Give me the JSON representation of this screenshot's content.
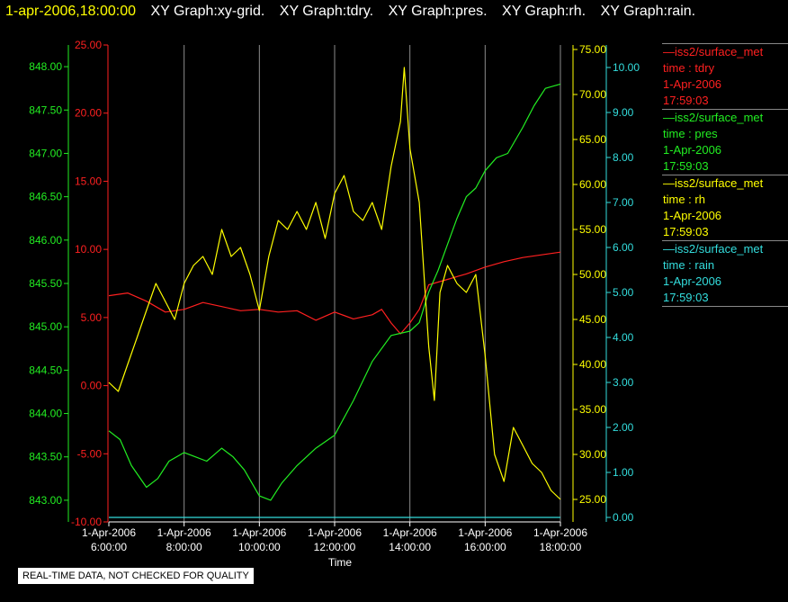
{
  "header": {
    "timestamp": "1-apr-2006,18:00:00",
    "graphs": [
      "XY Graph:xy-grid.",
      "XY Graph:tdry.",
      "XY Graph:pres.",
      "XY Graph:rh.",
      "XY Graph:rain."
    ]
  },
  "footer": {
    "note": "REAL-TIME DATA, NOT CHECKED FOR QUALITY"
  },
  "legend": [
    {
      "name": "—iss2/surface_met",
      "var": "time : tdry",
      "date": "1-Apr-2006",
      "time": "17:59:03",
      "color": "#ff2020"
    },
    {
      "name": "—iss2/surface_met",
      "var": "time : pres",
      "date": "1-Apr-2006",
      "time": "17:59:03",
      "color": "#22ee22"
    },
    {
      "name": "—iss2/surface_met",
      "var": "time : rh",
      "date": "1-Apr-2006",
      "time": "17:59:03",
      "color": "#ffff00"
    },
    {
      "name": "—iss2/surface_met",
      "var": "time : rain",
      "date": "1-Apr-2006",
      "time": "17:59:03",
      "color": "#33dddd"
    }
  ],
  "chart_data": {
    "type": "line",
    "xlabel": "Time",
    "x_range_hours": [
      6,
      18
    ],
    "x_ticks": [
      {
        "hour": 6,
        "date": "1-Apr-2006",
        "time": "6:00:00"
      },
      {
        "hour": 8,
        "date": "1-Apr-2006",
        "time": "8:00:00"
      },
      {
        "hour": 10,
        "date": "1-Apr-2006",
        "time": "10:00:00"
      },
      {
        "hour": 12,
        "date": "1-Apr-2006",
        "time": "12:00:00"
      },
      {
        "hour": 14,
        "date": "1-Apr-2006",
        "time": "14:00:00"
      },
      {
        "hour": 16,
        "date": "1-Apr-2006",
        "time": "16:00:00"
      },
      {
        "hour": 18,
        "date": "1-Apr-2006",
        "time": "18:00:00"
      }
    ],
    "grid": "vertical",
    "axes": {
      "pres": {
        "range": [
          842.75,
          848.25
        ],
        "ticks": [
          "843.00",
          "843.50",
          "844.00",
          "844.50",
          "845.00",
          "845.50",
          "846.00",
          "846.50",
          "847.00",
          "847.50",
          "848.00"
        ],
        "color": "#22ee22"
      },
      "tdry": {
        "range": [
          -10,
          25
        ],
        "ticks": [
          "-10.00",
          "-5.00",
          "0.00",
          "5.00",
          "10.00",
          "15.00",
          "20.00",
          "25.00"
        ],
        "color": "#ff2020"
      },
      "rh": {
        "range": [
          22.5,
          75.5
        ],
        "ticks": [
          "25.00",
          "30.00",
          "35.00",
          "40.00",
          "45.00",
          "50.00",
          "55.00",
          "60.00",
          "65.00",
          "70.00",
          "75.00"
        ],
        "color": "#ffff00"
      },
      "rain": {
        "range": [
          -0.1,
          10.5
        ],
        "ticks": [
          "0.00",
          "1.00",
          "2.00",
          "3.00",
          "4.00",
          "5.00",
          "6.00",
          "7.00",
          "8.00",
          "9.00",
          "10.00"
        ],
        "color": "#33dddd"
      }
    },
    "series": [
      {
        "name": "tdry",
        "color": "#ff2020",
        "x": [
          6.0,
          6.5,
          7.0,
          7.5,
          8.0,
          8.5,
          9.0,
          9.5,
          10.0,
          10.5,
          11.0,
          11.5,
          12.0,
          12.5,
          13.0,
          13.25,
          13.5,
          13.75,
          14.0,
          14.25,
          14.5,
          14.75,
          15.0,
          15.5,
          16.0,
          16.5,
          17.0,
          17.5,
          18.0
        ],
        "y": [
          6.6,
          6.8,
          6.2,
          5.4,
          5.6,
          6.1,
          5.8,
          5.5,
          5.6,
          5.4,
          5.5,
          4.8,
          5.4,
          4.9,
          5.2,
          5.6,
          4.6,
          3.8,
          4.6,
          5.6,
          7.4,
          7.6,
          7.8,
          8.2,
          8.7,
          9.1,
          9.4,
          9.6,
          9.8
        ]
      },
      {
        "name": "pres",
        "color": "#22ee22",
        "x": [
          6.0,
          6.3,
          6.6,
          7.0,
          7.3,
          7.6,
          8.0,
          8.3,
          8.6,
          9.0,
          9.3,
          9.6,
          10.0,
          10.3,
          10.6,
          11.0,
          11.5,
          12.0,
          12.5,
          13.0,
          13.5,
          14.0,
          14.25,
          14.5,
          14.75,
          15.0,
          15.25,
          15.5,
          15.75,
          16.0,
          16.3,
          16.6,
          17.0,
          17.3,
          17.6,
          18.0
        ],
        "y": [
          843.8,
          843.7,
          843.4,
          843.15,
          843.25,
          843.45,
          843.55,
          843.5,
          843.45,
          843.6,
          843.5,
          843.35,
          843.05,
          843.0,
          843.2,
          843.4,
          843.6,
          843.75,
          844.15,
          844.6,
          844.9,
          844.95,
          845.05,
          845.4,
          845.65,
          845.95,
          846.25,
          846.5,
          846.6,
          846.8,
          846.95,
          847.0,
          847.3,
          847.55,
          847.75,
          847.8
        ]
      },
      {
        "name": "rh",
        "color": "#ffff00",
        "x": [
          6.0,
          6.25,
          6.5,
          6.75,
          7.0,
          7.25,
          7.5,
          7.75,
          8.0,
          8.25,
          8.5,
          8.75,
          9.0,
          9.25,
          9.5,
          9.75,
          10.0,
          10.25,
          10.5,
          10.75,
          11.0,
          11.25,
          11.5,
          11.75,
          12.0,
          12.25,
          12.5,
          12.75,
          13.0,
          13.25,
          13.5,
          13.75,
          13.85,
          14.0,
          14.25,
          14.5,
          14.65,
          14.8,
          15.0,
          15.25,
          15.5,
          15.75,
          16.0,
          16.25,
          16.5,
          16.75,
          17.0,
          17.25,
          17.5,
          17.75,
          18.0
        ],
        "y": [
          38,
          37,
          40,
          43,
          46,
          49,
          47,
          45,
          49,
          51,
          52,
          50,
          55,
          52,
          53,
          50,
          46,
          52,
          56,
          55,
          57,
          55,
          58,
          54,
          59,
          61,
          57,
          56,
          58,
          55,
          62,
          67,
          73,
          64,
          58,
          42,
          36,
          48,
          51,
          49,
          48,
          50,
          41,
          30,
          27,
          33,
          31,
          29,
          28,
          26,
          25
        ]
      },
      {
        "name": "rain",
        "color": "#33dddd",
        "x": [
          6.0,
          18.0
        ],
        "y": [
          0.0,
          0.0
        ]
      }
    ]
  }
}
